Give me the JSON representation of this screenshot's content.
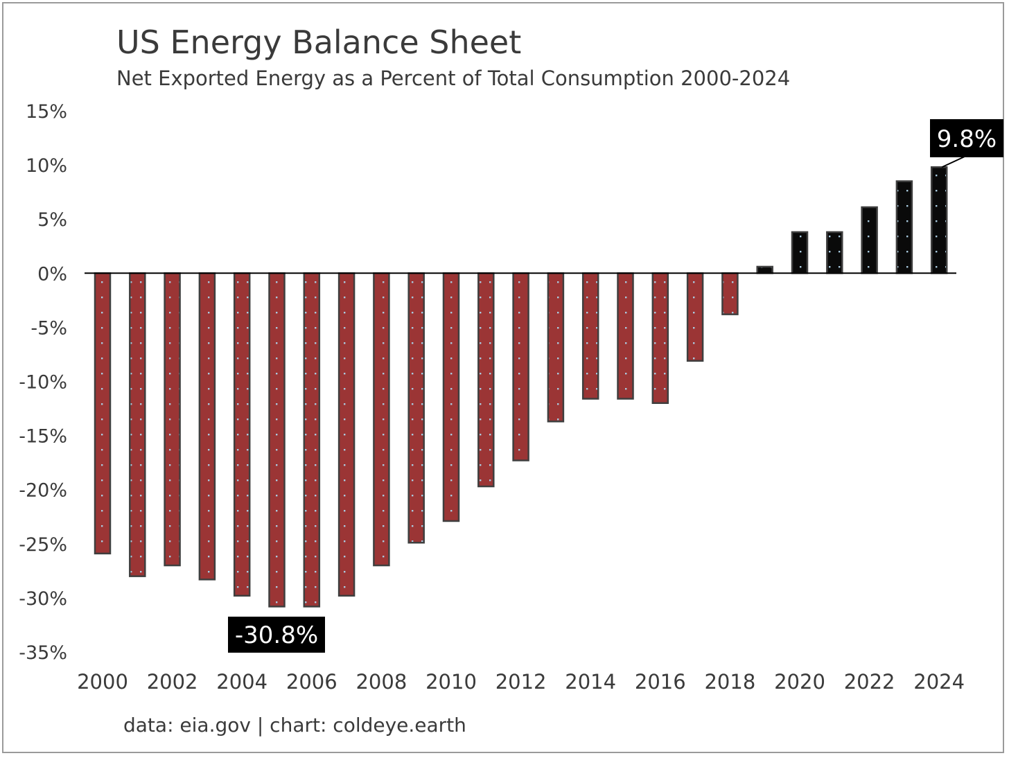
{
  "chart_data": {
    "type": "bar",
    "title": "US Energy Balance Sheet",
    "subtitle": "Net Exported Energy as a Percent of Total Consumption 2000-2024",
    "source": "data: eia.gov | chart: coldeye.earth",
    "xlabel": "",
    "ylabel": "",
    "ylim": [
      -35,
      15
    ],
    "yticks": [
      15,
      10,
      5,
      0,
      -5,
      -10,
      -15,
      -20,
      -25,
      -30,
      -35
    ],
    "ytick_labels": [
      "15%",
      "10%",
      "5%",
      "0%",
      "-5%",
      "-10%",
      "-15%",
      "-20%",
      "-25%",
      "-30%",
      "-35%"
    ],
    "categories": [
      "2000",
      "2001",
      "2002",
      "2003",
      "2004",
      "2005",
      "2006",
      "2007",
      "2008",
      "2009",
      "2010",
      "2011",
      "2012",
      "2013",
      "2014",
      "2015",
      "2016",
      "2017",
      "2018",
      "2019",
      "2020",
      "2021",
      "2022",
      "2023",
      "2024"
    ],
    "xtick_labels": [
      "2000",
      "2002",
      "2004",
      "2006",
      "2008",
      "2010",
      "2012",
      "2014",
      "2016",
      "2018",
      "2020",
      "2022",
      "2024"
    ],
    "values": [
      -25.9,
      -28.0,
      -27.0,
      -28.3,
      -29.8,
      -30.8,
      -30.8,
      -29.8,
      -27.0,
      -24.9,
      -22.9,
      -19.7,
      -17.3,
      -13.7,
      -11.6,
      -11.6,
      -12.0,
      -8.1,
      -3.8,
      0.6,
      3.8,
      3.8,
      6.1,
      8.5,
      9.8
    ],
    "colors": {
      "negative": "#9b3535",
      "positive": "#0a0a0a",
      "outline": "#3f3f3f",
      "dots": "#a9cbe0",
      "text": "#3a3a3a",
      "callout_bg": "#000000",
      "callout_text": "#ffffff"
    },
    "annotations": [
      {
        "label": "-30.8%",
        "category": "2005",
        "value": -30.8
      },
      {
        "label": "9.8%",
        "category": "2024",
        "value": 9.8
      }
    ]
  }
}
